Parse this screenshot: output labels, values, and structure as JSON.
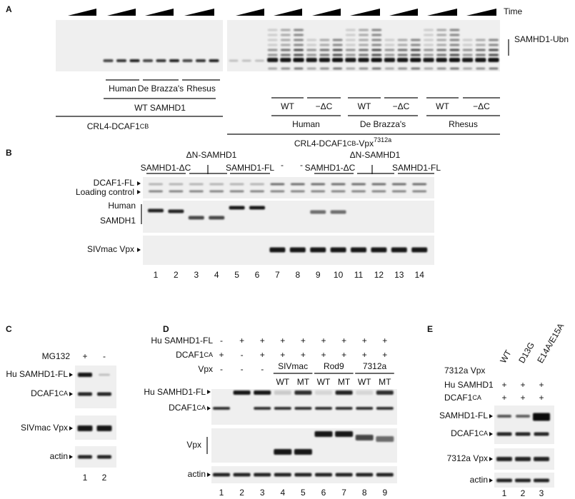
{
  "panel_a": {
    "label": "A",
    "time": "Time",
    "ubn": "SAMHD1-Ubn",
    "left_species": [
      "Human",
      "De Brazza's",
      "Rhesus"
    ],
    "left_wt": "WT SAMHD1",
    "left_group": {
      "main": "CRL4-DCAF1",
      "sub": "CB"
    },
    "right_variants": [
      "WT",
      "−ΔC",
      "WT",
      "−ΔC",
      "WT",
      "−ΔC"
    ],
    "right_species": [
      "Human",
      "De Brazza's",
      "Rhesus"
    ],
    "right_group": {
      "main": "CRL4-DCAF1",
      "sub": "CB",
      "suffix": "-Vpx",
      "sup": "7312a"
    }
  },
  "panel_b": {
    "label": "B",
    "groups": [
      "ΔN-SAMHD1",
      "ΔN-SAMHD1"
    ],
    "constructs": [
      "SAMHD1-ΔC",
      "SAMHD1-FL",
      "-",
      "-",
      "SAMHD1-ΔC",
      "SAMHD1-FL"
    ],
    "rows": [
      "DCAF1-FL",
      "Loading control",
      "Human",
      "SAMDH1",
      "SIVmac Vpx"
    ],
    "lanes": [
      1,
      2,
      3,
      4,
      5,
      6,
      7,
      8,
      9,
      10,
      11,
      12,
      13,
      14
    ]
  },
  "panel_c": {
    "label": "C",
    "treatment": "MG132",
    "signs": [
      "+",
      "-"
    ],
    "blot_rows": [
      {
        "main": "Hu SAMHD1-FL"
      },
      {
        "main": "DCAF1",
        "sub": "CA"
      },
      {
        "main": "SIVmac Vpx"
      },
      {
        "main": "actin"
      }
    ],
    "lanes": [
      1,
      2
    ]
  },
  "panel_d": {
    "label": "D",
    "header_rows": [
      {
        "label": {
          "main": "Hu SAMHD1-FL"
        },
        "signs": [
          "-",
          "+",
          "+",
          "+",
          "+",
          "+",
          "+",
          "+",
          "+"
        ]
      },
      {
        "label": {
          "main": "DCAF1",
          "sub": "CA"
        },
        "signs": [
          "+",
          "-",
          "+",
          "+",
          "+",
          "+",
          "+",
          "+",
          "+"
        ]
      },
      {
        "label": {
          "main": "Vpx"
        },
        "signs": [
          "-",
          "-",
          "-"
        ]
      }
    ],
    "vpx_groups": [
      "SIVmac",
      "Rod9",
      "7312a"
    ],
    "vpx_variants": [
      "WT",
      "MT",
      "WT",
      "MT",
      "WT",
      "MT"
    ],
    "blot_rows": [
      {
        "main": "Hu SAMHD1-FL"
      },
      {
        "main": "DCAF1",
        "sub": "CA"
      },
      {
        "main": "Vpx"
      },
      {
        "main": "actin"
      }
    ],
    "lanes": [
      1,
      2,
      3,
      4,
      5,
      6,
      7,
      8,
      9
    ]
  },
  "panel_e": {
    "label": "E",
    "columns": [
      "WT",
      "D13G",
      "E14A/E15A"
    ],
    "header_rows": [
      {
        "label": {
          "main": "7312a Vpx"
        }
      },
      {
        "label": {
          "main": "Hu SAMHD1"
        },
        "signs": [
          "+",
          "+",
          "+"
        ]
      },
      {
        "label": {
          "main": "DCAF1",
          "sub": "CA"
        },
        "signs": [
          "+",
          "+",
          "+"
        ]
      }
    ],
    "blot_rows": [
      {
        "main": "SAMHD1-FL"
      },
      {
        "main": "DCAF1",
        "sub": "CA"
      },
      {
        "main": "7312a Vpx"
      },
      {
        "main": "actin"
      }
    ],
    "lanes": [
      1,
      2,
      3
    ]
  }
}
